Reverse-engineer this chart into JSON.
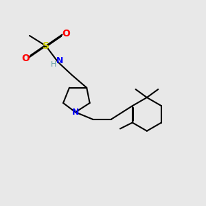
{
  "background_color": "#e8e8e8",
  "atom_colors": {
    "S": "#cccc00",
    "O": "#ff0000",
    "N_blue": "#0000ff",
    "H": "#5f9ea0",
    "C": "#000000"
  },
  "bond_color": "#000000",
  "bond_width": 1.5,
  "figsize": [
    3.0,
    3.0
  ],
  "dpi": 100
}
